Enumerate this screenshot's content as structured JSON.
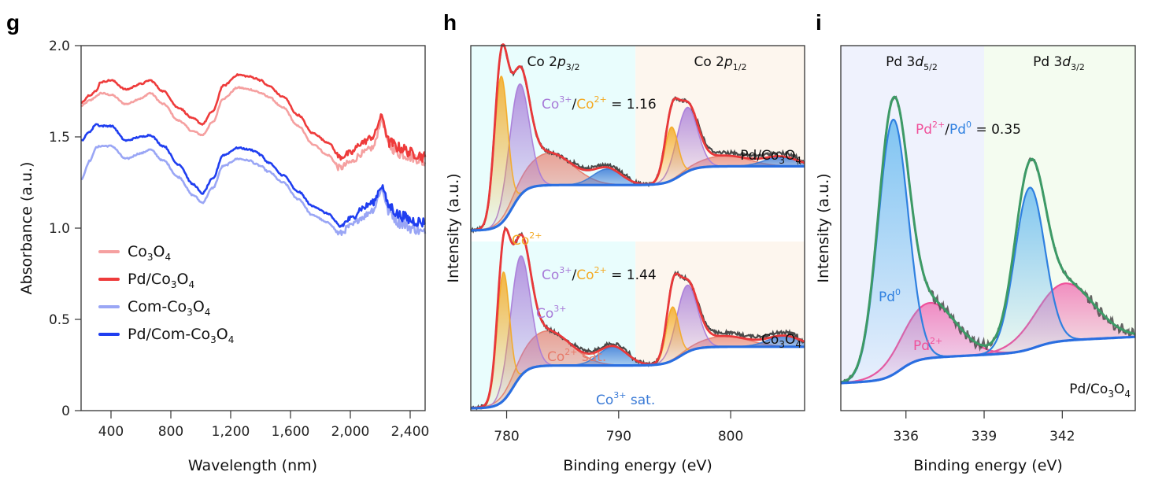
{
  "panels": {
    "g": {
      "letter": "g"
    },
    "h": {
      "letter": "h"
    },
    "i": {
      "letter": "i"
    }
  },
  "colors": {
    "co3o4": "#f5a0a0",
    "pd_co3o4": "#ee3b3b",
    "com_co3o4": "#9aa6f5",
    "pd_com_co3o4": "#1f3ef0",
    "xps_raw": "#4a4a4a",
    "xps_envelope_h": "#e8383a",
    "xps_envelope_i": "#3d9a66",
    "co2_peak": "#f4a921",
    "co3_peak": "#a77ad8",
    "co2_sat": "#e77a6a",
    "co3_sat": "#3a7ad6",
    "baseline": "#2a6ee0",
    "pd0": "#2f80e0",
    "pd2": "#f0509a",
    "bg_cyan": "#e9fdfd",
    "bg_peach": "#fdf6ee",
    "bg_lavender": "#eff2fd",
    "bg_mint": "#f4fcf0"
  },
  "chart_data": [
    {
      "id": "g",
      "type": "line",
      "title": "",
      "xlabel": "Wavelength (nm)",
      "ylabel": "Absorbance (a.u.)",
      "xlim": [
        200,
        2500
      ],
      "ylim": [
        0,
        2.0
      ],
      "xticks": [
        400,
        800,
        1200,
        1600,
        2000,
        2400
      ],
      "xtick_labels": [
        "400",
        "800",
        "1,200",
        "1,600",
        "2,000",
        "2,400"
      ],
      "yticks": [
        0,
        0.5,
        1.0,
        1.5,
        2.0
      ],
      "ytick_labels": [
        "0",
        "0.5",
        "1.0",
        "1.5",
        "2.0"
      ],
      "grid": false,
      "legend_position": "center-left",
      "x": [
        200,
        260,
        300,
        330,
        400,
        500,
        600,
        660,
        750,
        850,
        950,
        1010,
        1080,
        1150,
        1250,
        1330,
        1370,
        1400,
        1450,
        1550,
        1650,
        1750,
        1850,
        1930,
        2000,
        2080,
        2150,
        2210,
        2260,
        2330,
        2420,
        2500
      ],
      "series": [
        {
          "name": "Co3O4",
          "values": [
            1.67,
            1.7,
            1.72,
            1.74,
            1.73,
            1.68,
            1.71,
            1.74,
            1.68,
            1.59,
            1.53,
            1.51,
            1.58,
            1.71,
            1.77,
            1.76,
            1.75,
            1.74,
            1.72,
            1.66,
            1.56,
            1.46,
            1.4,
            1.33,
            1.36,
            1.41,
            1.44,
            1.59,
            1.45,
            1.41,
            1.39,
            1.36
          ]
        },
        {
          "name": "Pd/Co3O4",
          "values": [
            1.69,
            1.73,
            1.75,
            1.8,
            1.81,
            1.76,
            1.79,
            1.81,
            1.75,
            1.66,
            1.6,
            1.57,
            1.64,
            1.78,
            1.84,
            1.83,
            1.82,
            1.81,
            1.78,
            1.72,
            1.62,
            1.52,
            1.47,
            1.39,
            1.41,
            1.47,
            1.5,
            1.61,
            1.47,
            1.44,
            1.41,
            1.39
          ]
        },
        {
          "name": "Com-Co3O4",
          "values": [
            1.27,
            1.37,
            1.44,
            1.45,
            1.45,
            1.38,
            1.41,
            1.43,
            1.37,
            1.28,
            1.18,
            1.14,
            1.22,
            1.34,
            1.38,
            1.37,
            1.35,
            1.34,
            1.31,
            1.25,
            1.16,
            1.07,
            1.03,
            0.97,
            1.01,
            1.06,
            1.1,
            1.21,
            1.09,
            1.03,
            1.0,
            0.97
          ]
        },
        {
          "name": "Pd/Com-Co3O4",
          "values": [
            1.48,
            1.53,
            1.57,
            1.56,
            1.56,
            1.48,
            1.5,
            1.51,
            1.45,
            1.35,
            1.24,
            1.19,
            1.27,
            1.4,
            1.44,
            1.43,
            1.42,
            1.4,
            1.36,
            1.29,
            1.2,
            1.12,
            1.08,
            1.01,
            1.05,
            1.11,
            1.14,
            1.23,
            1.12,
            1.07,
            1.04,
            1.03
          ]
        }
      ],
      "legend": [
        {
          "base": "Co",
          "sub1": "3",
          "mid": "O",
          "sub2": "4",
          "prefix": ""
        },
        {
          "base": "Co",
          "sub1": "3",
          "mid": "O",
          "sub2": "4",
          "prefix": "Pd/"
        },
        {
          "base": "Co",
          "sub1": "3",
          "mid": "O",
          "sub2": "4",
          "prefix": "Com-"
        },
        {
          "base": "Co",
          "sub1": "3",
          "mid": "O",
          "sub2": "4",
          "prefix": "Pd/Com-"
        }
      ]
    },
    {
      "id": "h",
      "type": "area",
      "title": "",
      "xlabel": "Binding energy (eV)",
      "ylabel": "Intensity (a.u.)",
      "xlim": [
        776.8,
        806.6
      ],
      "xticks": [
        780,
        790,
        800
      ],
      "xtick_labels": [
        "780",
        "790",
        "800"
      ],
      "region_split_ev": 791.5,
      "region_labels": [
        {
          "main": "Co 2",
          "italic": "p",
          "sub": "3/2"
        },
        {
          "main": "Co 2",
          "italic": "p",
          "sub": "1/2"
        }
      ],
      "grid": false,
      "spectra": [
        {
          "sample": "Pd/Co3O4",
          "sample_label": {
            "base": "Pd/Co",
            "sub1": "3",
            "mid": "O",
            "sub2": "4"
          },
          "ratio_label": {
            "a": "Co",
            "a_sup": "3+",
            "slash": "/",
            "b": "Co",
            "b_sup": "2+",
            "eq": " = 1.16"
          },
          "co3_co2_ratio": 1.16,
          "baseline_steps": [
            {
              "center": 780.5,
              "width": 1.3,
              "height": 0.17
            },
            {
              "center": 795.5,
              "width": 1.5,
              "height": 0.07
            }
          ],
          "baseline_offset": 0.0,
          "peaks": [
            {
              "name": "Co2+",
              "center": 779.5,
              "height": 0.55,
              "fwhm": 1.4
            },
            {
              "name": "Co3+",
              "center": 781.1,
              "height": 0.42,
              "fwhm": 2.1
            },
            {
              "name": "Co2+ sat.",
              "center": 783.8,
              "height": 0.12,
              "fwhm": 5.0
            },
            {
              "name": "Co3+ sat.",
              "center": 789.0,
              "height": 0.06,
              "fwhm": 3.0
            },
            {
              "name": "Co2+",
              "center": 794.7,
              "height": 0.2,
              "fwhm": 1.4
            },
            {
              "name": "Co3+",
              "center": 796.1,
              "height": 0.24,
              "fwhm": 2.2
            },
            {
              "name": "Co2+ sat.",
              "center": 799.5,
              "height": 0.04,
              "fwhm": 5.0
            },
            {
              "name": "Co3+ sat.",
              "center": 804.5,
              "height": 0.035,
              "fwhm": 3.5
            }
          ]
        },
        {
          "sample": "Co3O4",
          "sample_label": {
            "base": "Co",
            "sub1": "3",
            "mid": "O",
            "sub2": "4"
          },
          "ratio_label": {
            "a": "Co",
            "a_sup": "3+",
            "slash": "/",
            "b": "Co",
            "b_sup": "2+",
            "eq": " = 1.44"
          },
          "co3_co2_ratio": 1.44,
          "baseline_steps": [
            {
              "center": 780.6,
              "width": 1.3,
              "height": 0.16
            },
            {
              "center": 795.5,
              "width": 1.5,
              "height": 0.07
            }
          ],
          "baseline_offset": 0.0,
          "peaks": [
            {
              "name": "Co2+",
              "center": 779.7,
              "height": 0.48,
              "fwhm": 1.3
            },
            {
              "name": "Co3+",
              "center": 781.2,
              "height": 0.45,
              "fwhm": 2.1
            },
            {
              "name": "Co2+ sat.",
              "center": 783.6,
              "height": 0.13,
              "fwhm": 5.0
            },
            {
              "name": "Co3+ sat.",
              "center": 789.5,
              "height": 0.07,
              "fwhm": 3.0
            },
            {
              "name": "Co2+",
              "center": 794.8,
              "height": 0.2,
              "fwhm": 1.3
            },
            {
              "name": "Co3+",
              "center": 796.1,
              "height": 0.25,
              "fwhm": 2.2
            },
            {
              "name": "Co2+ sat.",
              "center": 799.5,
              "height": 0.04,
              "fwhm": 5.0
            },
            {
              "name": "Co3+ sat.",
              "center": 804.8,
              "height": 0.04,
              "fwhm": 3.5
            }
          ]
        }
      ],
      "peak_labels": {
        "co2": {
          "text": "Co",
          "sup": "2+"
        },
        "co3": {
          "text": "Co",
          "sup": "3+"
        },
        "co2sat": {
          "text": "Co",
          "sup": "2+",
          "suffix": " sat."
        },
        "co3sat": {
          "text": "Co",
          "sup": "3+",
          "suffix": " sat."
        }
      }
    },
    {
      "id": "i",
      "type": "area",
      "title": "",
      "xlabel": "Binding energy (eV)",
      "ylabel": "Intensity (a.u.)",
      "xlim": [
        333.5,
        344.8
      ],
      "xticks": [
        336,
        339,
        342
      ],
      "xtick_labels": [
        "336",
        "339",
        "342"
      ],
      "region_split_ev": 339.0,
      "region_labels": [
        {
          "main": "Pd 3",
          "italic": "d",
          "sub": "5/2"
        },
        {
          "main": "Pd 3",
          "italic": "d",
          "sub": "3/2"
        }
      ],
      "grid": false,
      "sample_label": {
        "base": "Pd/Co",
        "sub1": "3",
        "mid": "O",
        "sub2": "4"
      },
      "ratio_label": {
        "a": "Pd",
        "a_sup": "2+",
        "slash": "/",
        "b": "Pd",
        "b_sup": "0",
        "eq": " = 0.35"
      },
      "pd2_pd0_ratio": 0.35,
      "baseline_steps": [
        {
          "center": 335.8,
          "width": 0.7,
          "height": 0.05
        },
        {
          "center": 341.0,
          "width": 0.8,
          "height": 0.025
        }
      ],
      "baseline_slope": 0.003,
      "peaks": [
        {
          "name": "Pd0",
          "center": 335.5,
          "height": 0.6,
          "fwhm": 1.35
        },
        {
          "name": "Pd2+",
          "center": 336.9,
          "height": 0.13,
          "fwhm": 2.4
        },
        {
          "name": "Pd0",
          "center": 340.75,
          "height": 0.38,
          "fwhm": 1.35
        },
        {
          "name": "Pd2+",
          "center": 342.1,
          "height": 0.135,
          "fwhm": 2.6
        }
      ],
      "peak_labels": {
        "pd0": {
          "text": "Pd",
          "sup": "0"
        },
        "pd2": {
          "text": "Pd",
          "sup": "2+"
        }
      }
    }
  ]
}
